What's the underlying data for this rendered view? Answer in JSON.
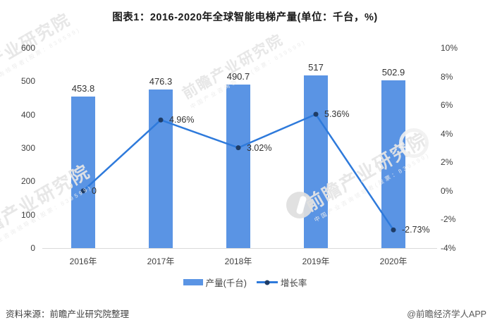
{
  "title": "图表1：2016-2020年全球智能电梯产量(单位：千台，%)",
  "chart_data": {
    "type": "bar+line",
    "title": "图表1：2016-2020年全球智能电梯产量(单位：千台，%)",
    "categories": [
      "2016年",
      "2017年",
      "2018年",
      "2019年",
      "2020年"
    ],
    "series": [
      {
        "name": "产量(千台)",
        "type": "bar",
        "axis": "left",
        "values": [
          453.8,
          476.3,
          490.7,
          517,
          502.9
        ],
        "labels": [
          "453.8",
          "476.3",
          "490.7",
          "517",
          "502.9"
        ],
        "color": "#5A94E4"
      },
      {
        "name": "增长率",
        "type": "line",
        "axis": "right",
        "values": [
          0,
          4.96,
          3.02,
          5.36,
          -2.73
        ],
        "labels": [
          "0",
          "4.96%",
          "3.02%",
          "5.36%",
          "-2.73%"
        ],
        "color": "#2E7ADB",
        "dot_color": "#1E3C66"
      }
    ],
    "left_axis": {
      "min": 0,
      "max": 600,
      "step": 100,
      "ticks": [
        "600",
        "500",
        "400",
        "300",
        "200",
        "100",
        "0"
      ]
    },
    "right_axis": {
      "min": -4,
      "max": 10,
      "step": 2,
      "ticks": [
        "10%",
        "8%",
        "6%",
        "4%",
        "2%",
        "0%",
        "-2%",
        "-4%"
      ]
    },
    "grid": false,
    "legend_position": "bottom"
  },
  "footer": {
    "source": "资料来源：前瞻产业研究院整理",
    "credit": "@前瞻经济学人APP"
  },
  "watermark": {
    "text": "前瞻产业研究院",
    "subtext": "中国产业咨询领导者(股票：839599)"
  },
  "colors": {
    "bar": "#5A94E4",
    "line": "#2E7ADB",
    "dot": "#1E3C66",
    "axis_line": "#D9D9D9",
    "text": "#404040"
  }
}
